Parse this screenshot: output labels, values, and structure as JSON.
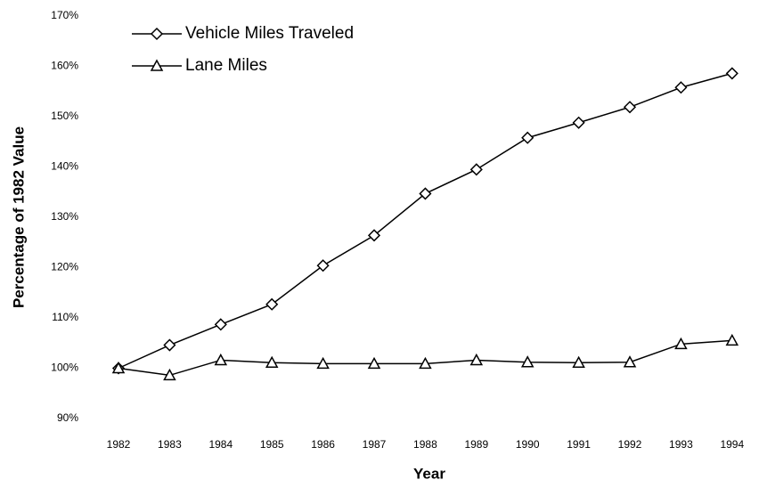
{
  "chart_data": {
    "type": "line",
    "x_label": "Year",
    "y_label": "Percentage of 1982 Value",
    "categories": [
      "1982",
      "1983",
      "1984",
      "1985",
      "1986",
      "1987",
      "1988",
      "1989",
      "1990",
      "1991",
      "1992",
      "1993",
      "1994"
    ],
    "series": [
      {
        "name": "Vehicle Miles Traveled",
        "color": "#000000",
        "marker": "diamond",
        "values": [
          100,
          104.6,
          108.7,
          112.7,
          120.4,
          126.4,
          134.7,
          139.5,
          145.8,
          148.8,
          151.9,
          155.8,
          158.6
        ]
      },
      {
        "name": "Lane Miles",
        "color": "#000000",
        "marker": "triangle",
        "values": [
          100,
          98.6,
          101.6,
          101.1,
          100.9,
          100.9,
          100.9,
          101.6,
          101.2,
          101.1,
          101.2,
          104.8,
          105.5
        ]
      }
    ],
    "ylim": [
      90,
      170
    ],
    "yticks": [
      {
        "value": 90,
        "label": "90%"
      },
      {
        "value": 100,
        "label": "100%"
      },
      {
        "value": 110,
        "label": "110%"
      },
      {
        "value": 120,
        "label": "120%"
      },
      {
        "value": 130,
        "label": "130%"
      },
      {
        "value": 140,
        "label": "140%"
      },
      {
        "value": 150,
        "label": "150%"
      },
      {
        "value": 160,
        "label": "160%"
      },
      {
        "value": 170,
        "label": "170%"
      }
    ],
    "grid": false,
    "legend": "upper left"
  }
}
